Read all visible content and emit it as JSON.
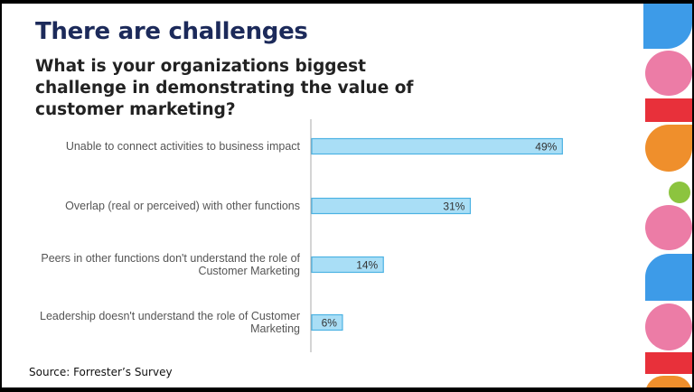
{
  "slide": {
    "title": "There are challenges",
    "subtitle": "What is your organizations biggest challenge in demonstrating the value of customer marketing?",
    "source": "Source: Forrester’s Survey"
  },
  "colors": {
    "bar_fill": "#a9def6",
    "bar_stroke": "#4bb2e3",
    "axis": "#aaaaaa",
    "title": "#1c2a5a",
    "deco_blue": "#3d9be8",
    "deco_pink": "#ec7ca6",
    "deco_red": "#e8303a",
    "deco_orange": "#ef8f2c",
    "deco_green": "#8cc43f"
  },
  "chart_data": {
    "type": "bar",
    "orientation": "horizontal",
    "categories": [
      [
        "Unable to connect activities to business impact"
      ],
      [
        "Overlap (real or perceived) with other functions"
      ],
      [
        "Peers in other functions don't understand the role of",
        "Customer Marketing"
      ],
      [
        "Leadership doesn't understand the role of Customer",
        "Marketing"
      ]
    ],
    "values": [
      49,
      31,
      14,
      6
    ],
    "value_labels": [
      "49%",
      "31%",
      "14%",
      "6%"
    ],
    "xlim": [
      0,
      100
    ],
    "grid": false,
    "legend": "none"
  }
}
